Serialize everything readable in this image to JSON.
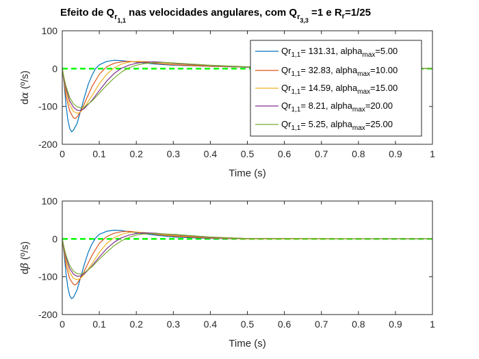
{
  "title": {
    "p1": "Efeito de Q",
    "sub1": "r",
    "subsub1": "1,1",
    "p2": " nas velocidades angulares, com Q",
    "sub2": "r",
    "subsub2": "3,3",
    "p3": " =1 e R",
    "sub3": "r",
    "p4": "=1/25"
  },
  "colors": [
    "#0072BD",
    "#D95319",
    "#EDB120",
    "#7E2F8E",
    "#77AC30"
  ],
  "reference_color": "#00FF00",
  "chart_data": [
    {
      "type": "line",
      "xlabel": "Time (s)",
      "ylabel_prefix": "d",
      "ylabel_symbol": "α",
      "ylabel_unit": " (º/s)",
      "xlim": [
        0,
        1
      ],
      "ylim": [
        -200,
        100
      ],
      "x_ticks": [
        "0",
        "0.1",
        "0.2",
        "0.3",
        "0.4",
        "0.5",
        "0.6",
        "0.7",
        "0.8",
        "0.9",
        "1"
      ],
      "y_ticks": [
        "100",
        "0",
        "-100",
        "-200"
      ],
      "legend": "top-right",
      "reference_line": 0,
      "series": [
        {
          "label": {
            "pre": "Qr",
            "sub": "1,1",
            "mid": "= 131.31, alpha",
            "sub2": "max",
            "post": "=5.00"
          },
          "points": [
            [
              0,
              0
            ],
            [
              0.005,
              -40
            ],
            [
              0.01,
              -95
            ],
            [
              0.015,
              -135
            ],
            [
              0.02,
              -158
            ],
            [
              0.025,
              -167
            ],
            [
              0.03,
              -163
            ],
            [
              0.04,
              -145
            ],
            [
              0.05,
              -110
            ],
            [
              0.06,
              -75
            ],
            [
              0.07,
              -42
            ],
            [
              0.08,
              -18
            ],
            [
              0.09,
              0
            ],
            [
              0.1,
              10
            ],
            [
              0.12,
              19
            ],
            [
              0.14,
              22
            ],
            [
              0.16,
              21
            ],
            [
              0.2,
              17
            ],
            [
              0.25,
              12
            ],
            [
              0.3,
              9
            ],
            [
              0.4,
              6
            ],
            [
              0.5,
              4
            ],
            [
              0.6,
              2
            ],
            [
              0.7,
              1
            ],
            [
              0.8,
              0.5
            ],
            [
              0.9,
              0.2
            ],
            [
              1,
              0
            ]
          ]
        },
        {
          "label": {
            "pre": "Qr",
            "sub": "1,1",
            "mid": "= 32.83, alpha",
            "sub2": "max",
            "post": "=10.00"
          },
          "points": [
            [
              0,
              0
            ],
            [
              0.005,
              -35
            ],
            [
              0.01,
              -72
            ],
            [
              0.02,
              -112
            ],
            [
              0.03,
              -130
            ],
            [
              0.035,
              -132
            ],
            [
              0.04,
              -128
            ],
            [
              0.05,
              -112
            ],
            [
              0.06,
              -92
            ],
            [
              0.07,
              -70
            ],
            [
              0.08,
              -48
            ],
            [
              0.1,
              -15
            ],
            [
              0.12,
              5
            ],
            [
              0.14,
              14
            ],
            [
              0.16,
              18
            ],
            [
              0.18,
              19
            ],
            [
              0.2,
              18
            ],
            [
              0.25,
              14
            ],
            [
              0.3,
              10
            ],
            [
              0.4,
              6
            ],
            [
              0.5,
              4
            ],
            [
              0.6,
              2
            ],
            [
              0.7,
              1
            ],
            [
              0.8,
              0.5
            ],
            [
              0.9,
              0.2
            ],
            [
              1,
              0
            ]
          ]
        },
        {
          "label": {
            "pre": "Qr",
            "sub": "1,1",
            "mid": "= 14.59, alpha",
            "sub2": "max",
            "post": "=15.00"
          },
          "points": [
            [
              0,
              0
            ],
            [
              0.005,
              -30
            ],
            [
              0.01,
              -60
            ],
            [
              0.02,
              -95
            ],
            [
              0.03,
              -113
            ],
            [
              0.04,
              -118
            ],
            [
              0.045,
              -117
            ],
            [
              0.05,
              -114
            ],
            [
              0.06,
              -102
            ],
            [
              0.08,
              -72
            ],
            [
              0.1,
              -40
            ],
            [
              0.12,
              -15
            ],
            [
              0.14,
              2
            ],
            [
              0.16,
              12
            ],
            [
              0.18,
              17
            ],
            [
              0.2,
              19
            ],
            [
              0.22,
              19
            ],
            [
              0.25,
              17
            ],
            [
              0.3,
              13
            ],
            [
              0.4,
              7
            ],
            [
              0.5,
              4
            ],
            [
              0.6,
              2
            ],
            [
              0.7,
              1
            ],
            [
              0.8,
              0.5
            ],
            [
              0.9,
              0.2
            ],
            [
              1,
              0
            ]
          ]
        },
        {
          "label": {
            "pre": "Qr",
            "sub": "1,1",
            "mid": "= 8.21, alpha",
            "sub2": "max",
            "post": "=20.00"
          },
          "points": [
            [
              0,
              0
            ],
            [
              0.005,
              -28
            ],
            [
              0.01,
              -52
            ],
            [
              0.02,
              -85
            ],
            [
              0.03,
              -102
            ],
            [
              0.04,
              -110
            ],
            [
              0.05,
              -111
            ],
            [
              0.06,
              -105
            ],
            [
              0.08,
              -84
            ],
            [
              0.1,
              -58
            ],
            [
              0.12,
              -33
            ],
            [
              0.14,
              -13
            ],
            [
              0.16,
              1
            ],
            [
              0.18,
              9
            ],
            [
              0.2,
              14
            ],
            [
              0.22,
              17
            ],
            [
              0.25,
              18
            ],
            [
              0.28,
              16
            ],
            [
              0.3,
              14
            ],
            [
              0.4,
              8
            ],
            [
              0.5,
              4
            ],
            [
              0.6,
              2
            ],
            [
              0.7,
              1
            ],
            [
              0.8,
              0.5
            ],
            [
              0.9,
              0.2
            ],
            [
              1,
              0
            ]
          ]
        },
        {
          "label": {
            "pre": "Qr",
            "sub": "1,1",
            "mid": "= 5.25, alpha",
            "sub2": "max",
            "post": "=25.00"
          },
          "points": [
            [
              0,
              0
            ],
            [
              0.005,
              -25
            ],
            [
              0.01,
              -46
            ],
            [
              0.02,
              -76
            ],
            [
              0.03,
              -93
            ],
            [
              0.04,
              -101
            ],
            [
              0.05,
              -104
            ],
            [
              0.06,
              -101
            ],
            [
              0.08,
              -86
            ],
            [
              0.1,
              -65
            ],
            [
              0.12,
              -44
            ],
            [
              0.14,
              -25
            ],
            [
              0.16,
              -9
            ],
            [
              0.18,
              2
            ],
            [
              0.2,
              9
            ],
            [
              0.22,
              13
            ],
            [
              0.25,
              16
            ],
            [
              0.28,
              16
            ],
            [
              0.3,
              15
            ],
            [
              0.4,
              9
            ],
            [
              0.5,
              5
            ],
            [
              0.6,
              3
            ],
            [
              0.7,
              1
            ],
            [
              0.8,
              0.5
            ],
            [
              0.9,
              0.2
            ],
            [
              1,
              0
            ]
          ]
        }
      ]
    },
    {
      "type": "line",
      "xlabel": "Time (s)",
      "ylabel_prefix": "d",
      "ylabel_symbol": "β",
      "ylabel_unit": " (º/s)",
      "xlim": [
        0,
        1
      ],
      "ylim": [
        -200,
        100
      ],
      "x_ticks": [
        "0",
        "0.1",
        "0.2",
        "0.3",
        "0.4",
        "0.5",
        "0.6",
        "0.7",
        "0.8",
        "0.9",
        "1"
      ],
      "y_ticks": [
        "100",
        "0",
        "-100",
        "-200"
      ],
      "reference_line": 0,
      "series": [
        {
          "points": [
            [
              0,
              0
            ],
            [
              0.005,
              -40
            ],
            [
              0.01,
              -90
            ],
            [
              0.015,
              -128
            ],
            [
              0.02,
              -150
            ],
            [
              0.025,
              -158
            ],
            [
              0.03,
              -155
            ],
            [
              0.04,
              -135
            ],
            [
              0.05,
              -100
            ],
            [
              0.06,
              -66
            ],
            [
              0.07,
              -36
            ],
            [
              0.08,
              -14
            ],
            [
              0.09,
              2
            ],
            [
              0.1,
              12
            ],
            [
              0.12,
              20
            ],
            [
              0.14,
              23
            ],
            [
              0.16,
              22
            ],
            [
              0.2,
              16
            ],
            [
              0.25,
              10
            ],
            [
              0.3,
              5
            ],
            [
              0.4,
              1
            ],
            [
              0.5,
              0
            ],
            [
              1,
              0
            ]
          ]
        },
        {
          "points": [
            [
              0,
              0
            ],
            [
              0.005,
              -33
            ],
            [
              0.01,
              -68
            ],
            [
              0.02,
              -105
            ],
            [
              0.03,
              -120
            ],
            [
              0.035,
              -122
            ],
            [
              0.04,
              -118
            ],
            [
              0.05,
              -103
            ],
            [
              0.06,
              -84
            ],
            [
              0.08,
              -44
            ],
            [
              0.1,
              -12
            ],
            [
              0.12,
              6
            ],
            [
              0.14,
              15
            ],
            [
              0.16,
              19
            ],
            [
              0.18,
              20
            ],
            [
              0.2,
              18
            ],
            [
              0.25,
              12
            ],
            [
              0.3,
              7
            ],
            [
              0.4,
              2
            ],
            [
              0.5,
              0
            ],
            [
              1,
              0
            ]
          ]
        },
        {
          "points": [
            [
              0,
              0
            ],
            [
              0.005,
              -28
            ],
            [
              0.01,
              -57
            ],
            [
              0.02,
              -88
            ],
            [
              0.03,
              -104
            ],
            [
              0.04,
              -108
            ],
            [
              0.05,
              -104
            ],
            [
              0.06,
              -93
            ],
            [
              0.08,
              -66
            ],
            [
              0.1,
              -36
            ],
            [
              0.12,
              -12
            ],
            [
              0.14,
              3
            ],
            [
              0.16,
              12
            ],
            [
              0.18,
              17
            ],
            [
              0.2,
              18
            ],
            [
              0.22,
              17
            ],
            [
              0.25,
              14
            ],
            [
              0.3,
              9
            ],
            [
              0.4,
              3
            ],
            [
              0.5,
              0
            ],
            [
              1,
              0
            ]
          ]
        },
        {
          "points": [
            [
              0,
              0
            ],
            [
              0.005,
              -25
            ],
            [
              0.01,
              -49
            ],
            [
              0.02,
              -78
            ],
            [
              0.03,
              -93
            ],
            [
              0.04,
              -99
            ],
            [
              0.05,
              -98
            ],
            [
              0.06,
              -92
            ],
            [
              0.08,
              -72
            ],
            [
              0.1,
              -48
            ],
            [
              0.12,
              -26
            ],
            [
              0.14,
              -9
            ],
            [
              0.16,
              3
            ],
            [
              0.18,
              10
            ],
            [
              0.2,
              14
            ],
            [
              0.22,
              16
            ],
            [
              0.25,
              15
            ],
            [
              0.3,
              11
            ],
            [
              0.4,
              4
            ],
            [
              0.5,
              1
            ],
            [
              1,
              0
            ]
          ]
        },
        {
          "points": [
            [
              0,
              0
            ],
            [
              0.005,
              -23
            ],
            [
              0.01,
              -43
            ],
            [
              0.02,
              -70
            ],
            [
              0.03,
              -85
            ],
            [
              0.04,
              -92
            ],
            [
              0.05,
              -93
            ],
            [
              0.06,
              -89
            ],
            [
              0.08,
              -74
            ],
            [
              0.1,
              -54
            ],
            [
              0.12,
              -35
            ],
            [
              0.14,
              -18
            ],
            [
              0.16,
              -5
            ],
            [
              0.18,
              4
            ],
            [
              0.2,
              10
            ],
            [
              0.22,
              13
            ],
            [
              0.25,
              14
            ],
            [
              0.3,
              12
            ],
            [
              0.4,
              5
            ],
            [
              0.5,
              1
            ],
            [
              1,
              0
            ]
          ]
        }
      ]
    }
  ]
}
